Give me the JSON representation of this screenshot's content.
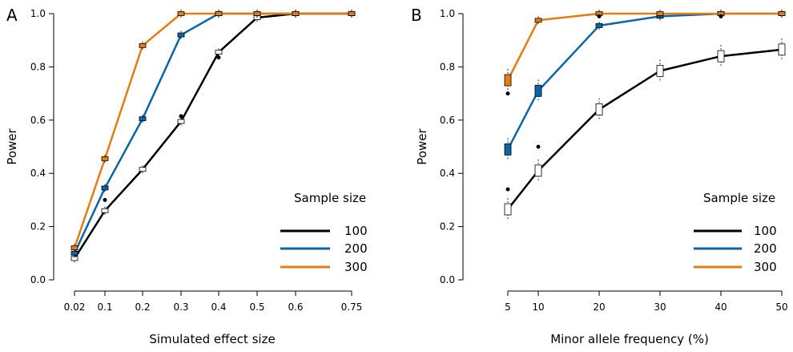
{
  "chart_data": [
    {
      "type": "line",
      "panel_label": "A",
      "xlabel": "Simulated effect size",
      "ylabel": "Power",
      "x": [
        0.02,
        0.1,
        0.2,
        0.3,
        0.4,
        0.5,
        0.6,
        0.75
      ],
      "x_tick_labels": [
        "0.02",
        "0.1",
        "0.2",
        "0.3",
        "0.4",
        "0.5",
        "0.6",
        "0.75"
      ],
      "ylim": [
        0,
        1
      ],
      "y_ticks": [
        "0.0",
        "0.2",
        "0.4",
        "0.6",
        "0.8",
        "1.0"
      ],
      "legend_title": "Sample size",
      "legend_position": "bottom-right",
      "grid": false,
      "series": [
        {
          "name": "100",
          "color": "#000000",
          "values": [
            0.08,
            0.26,
            0.415,
            0.595,
            0.855,
            0.985,
            1.0,
            1.0
          ]
        },
        {
          "name": "200",
          "color": "#0a66a8",
          "values": [
            0.1,
            0.345,
            0.605,
            0.92,
            1.0,
            1.0,
            1.0,
            1.0
          ]
        },
        {
          "name": "300",
          "color": "#e57c14",
          "values": [
            0.12,
            0.455,
            0.88,
            1.0,
            1.0,
            1.0,
            1.0,
            1.0
          ]
        }
      ],
      "outliers": [
        {
          "series": "100",
          "x": 0.1,
          "y": 0.3
        },
        {
          "series": "100",
          "x": 0.3,
          "y": 0.615
        },
        {
          "series": "100",
          "x": 0.4,
          "y": 0.835
        }
      ]
    },
    {
      "type": "line",
      "panel_label": "B",
      "xlabel": "Minor allele frequency (%)",
      "ylabel": "Power",
      "x": [
        5,
        10,
        20,
        30,
        40,
        50
      ],
      "x_tick_labels": [
        "5",
        "10",
        "20",
        "30",
        "40",
        "50"
      ],
      "ylim": [
        0,
        1
      ],
      "y_ticks": [
        "0.0",
        "0.2",
        "0.4",
        "0.6",
        "0.8",
        "1.0"
      ],
      "legend_title": "Sample size",
      "legend_position": "bottom-right",
      "grid": false,
      "series": [
        {
          "name": "100",
          "color": "#000000",
          "values": [
            0.265,
            0.41,
            0.64,
            0.785,
            0.84,
            0.865
          ]
        },
        {
          "name": "200",
          "color": "#0a66a8",
          "values": [
            0.49,
            0.71,
            0.955,
            0.99,
            1.0,
            1.0
          ]
        },
        {
          "name": "300",
          "color": "#e57c14",
          "values": [
            0.75,
            0.975,
            1.0,
            1.0,
            1.0,
            1.0
          ]
        }
      ],
      "outliers": [
        {
          "series": "100",
          "x": 10,
          "y": 0.5
        },
        {
          "series": "200",
          "x": 5,
          "y": 0.34
        },
        {
          "series": "300",
          "x": 5,
          "y": 0.7
        },
        {
          "series": "200",
          "x": 20,
          "y": 0.99
        },
        {
          "series": "100",
          "x": 40,
          "y": 0.99
        }
      ]
    }
  ]
}
